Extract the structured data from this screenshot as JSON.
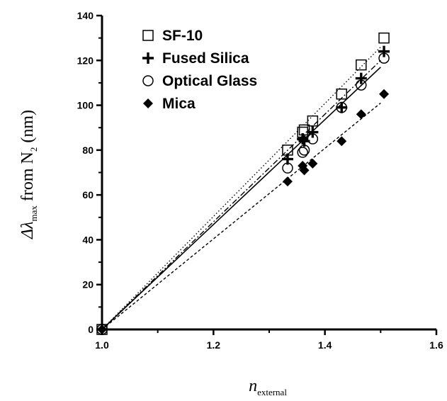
{
  "chart_data": {
    "type": "scatter",
    "title": "",
    "xlabel": {
      "main": "n",
      "sub": "external"
    },
    "ylabel": {
      "pre": "Δλ",
      "sub1": "max",
      "mid": " from N",
      "sub2": "2",
      "post": " (nm)"
    },
    "xlim": [
      1.0,
      1.6
    ],
    "ylim": [
      0,
      140
    ],
    "x_ticks": [
      1.0,
      1.2,
      1.4,
      1.6
    ],
    "x_tick_labels": [
      "1.0",
      "1.2",
      "1.4",
      "1.6"
    ],
    "y_ticks": [
      0,
      20,
      40,
      60,
      80,
      100,
      120,
      140
    ],
    "y_tick_labels": [
      "0",
      "20",
      "40",
      "60",
      "80",
      "100",
      "120",
      "140"
    ],
    "grid": false,
    "legend_position": "top-left",
    "series": [
      {
        "name": "SF-10",
        "marker": "open-square",
        "line_style": "dotted",
        "fit": [
          [
            1.0,
            0
          ],
          [
            1.5,
            126
          ]
        ],
        "points": [
          [
            1.0,
            0
          ],
          [
            1.333,
            80
          ],
          [
            1.36,
            88
          ],
          [
            1.363,
            89
          ],
          [
            1.378,
            93
          ],
          [
            1.43,
            105
          ],
          [
            1.465,
            118
          ],
          [
            1.506,
            130
          ]
        ]
      },
      {
        "name": "Fused Silica",
        "marker": "plus",
        "line_style": "dashdot",
        "fit": [
          [
            1.0,
            0
          ],
          [
            1.5,
            120
          ]
        ],
        "points": [
          [
            1.0,
            0
          ],
          [
            1.333,
            76
          ],
          [
            1.36,
            85
          ],
          [
            1.363,
            84
          ],
          [
            1.378,
            88
          ],
          [
            1.43,
            99
          ],
          [
            1.465,
            112
          ],
          [
            1.506,
            124
          ]
        ]
      },
      {
        "name": "Optical Glass",
        "marker": "open-circle",
        "line_style": "solid",
        "fit": [
          [
            1.0,
            0
          ],
          [
            1.5,
            117
          ]
        ],
        "points": [
          [
            1.0,
            0
          ],
          [
            1.333,
            72
          ],
          [
            1.36,
            79
          ],
          [
            1.363,
            80
          ],
          [
            1.378,
            85
          ],
          [
            1.43,
            99
          ],
          [
            1.465,
            109
          ],
          [
            1.506,
            121
          ]
        ]
      },
      {
        "name": "Mica",
        "marker": "filled-diamond",
        "line_style": "dashed",
        "fit": [
          [
            1.0,
            0
          ],
          [
            1.5,
            101
          ]
        ],
        "points": [
          [
            1.0,
            0
          ],
          [
            1.333,
            66
          ],
          [
            1.36,
            73
          ],
          [
            1.363,
            71
          ],
          [
            1.378,
            74
          ],
          [
            1.43,
            84
          ],
          [
            1.465,
            96
          ],
          [
            1.506,
            105
          ]
        ]
      }
    ]
  }
}
